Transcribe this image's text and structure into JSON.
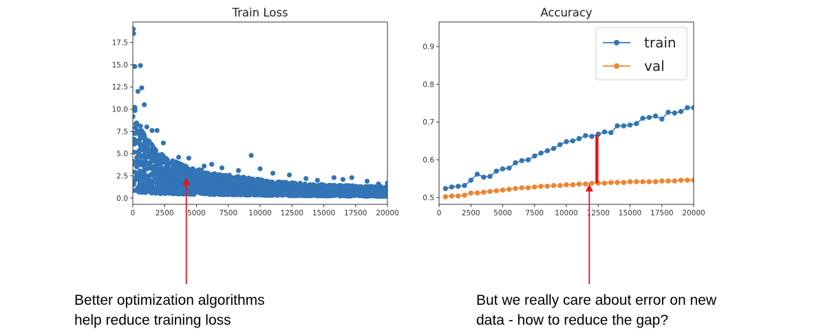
{
  "chart_data": [
    {
      "type": "scatter",
      "title": "Train Loss",
      "xlabel": "",
      "ylabel": "",
      "xlim": [
        0,
        20000
      ],
      "ylim": [
        -0.7,
        19.8
      ],
      "xticks": [
        "0",
        "2500",
        "5000",
        "7500",
        "10000",
        "12500",
        "15000",
        "17500",
        "20000"
      ],
      "yticks": [
        "0.0",
        "2.5",
        "5.0",
        "7.5",
        "10.0",
        "12.5",
        "15.0",
        "17.5"
      ],
      "color": "#3274b5",
      "envelope": {
        "x": [
          0,
          200,
          500,
          1000,
          1500,
          2000,
          2500,
          3000,
          4000,
          5000,
          6000,
          7000,
          8000,
          9000,
          10000,
          11000,
          12000,
          13000,
          14000,
          15000,
          16000,
          17000,
          18000,
          19000,
          20000
        ],
        "upper": [
          11.0,
          10.0,
          8.8,
          7.0,
          6.0,
          5.2,
          4.7,
          4.3,
          3.7,
          3.3,
          2.9,
          2.7,
          2.5,
          2.3,
          2.1,
          1.9,
          1.8,
          1.7,
          1.6,
          1.5,
          1.45,
          1.4,
          1.35,
          1.3,
          1.25
        ],
        "lower": [
          0.8,
          0.7,
          0.65,
          0.6,
          0.55,
          0.5,
          0.5,
          0.48,
          0.45,
          0.42,
          0.4,
          0.38,
          0.36,
          0.34,
          0.32,
          0.3,
          0.28,
          0.26,
          0.25,
          0.24,
          0.23,
          0.22,
          0.21,
          0.2,
          0.2
        ]
      },
      "outliers": [
        [
          40,
          19.0
        ],
        [
          60,
          18.5
        ],
        [
          150,
          14.8
        ],
        [
          600,
          14.9
        ],
        [
          700,
          12.4
        ],
        [
          400,
          12.0
        ],
        [
          900,
          10.5
        ],
        [
          1100,
          8.0
        ],
        [
          1500,
          7.6
        ],
        [
          1900,
          7.6
        ],
        [
          2400,
          6.2
        ],
        [
          3600,
          4.6
        ],
        [
          4400,
          4.5
        ],
        [
          5600,
          3.6
        ],
        [
          6200,
          3.8
        ],
        [
          7000,
          3.4
        ],
        [
          8300,
          3.1
        ],
        [
          9300,
          4.8
        ],
        [
          10000,
          3.3
        ],
        [
          11000,
          2.8
        ],
        [
          12300,
          2.6
        ],
        [
          13600,
          2.2
        ],
        [
          14500,
          2.0
        ],
        [
          15800,
          2.3
        ],
        [
          16500,
          2.1
        ],
        [
          17200,
          2.3
        ],
        [
          18400,
          1.9
        ],
        [
          19300,
          1.6
        ],
        [
          20000,
          1.7
        ]
      ]
    },
    {
      "type": "line",
      "title": "Accuracy",
      "xlabel": "",
      "ylabel": "",
      "xlim": [
        0,
        20000
      ],
      "ylim": [
        0.482,
        0.965
      ],
      "xticks": [
        "0",
        "2500",
        "5000",
        "7500",
        "10000",
        "12500",
        "15000",
        "17500",
        "20000"
      ],
      "yticks": [
        "0.5",
        "0.6",
        "0.7",
        "0.8",
        "0.9"
      ],
      "legend": "top-right",
      "x": [
        500,
        1000,
        1500,
        2000,
        2500,
        3000,
        3500,
        4000,
        4500,
        5000,
        5500,
        6000,
        6500,
        7000,
        7500,
        8000,
        8500,
        9000,
        9500,
        10000,
        10500,
        11000,
        11500,
        12000,
        12500,
        13000,
        13500,
        14000,
        14500,
        15000,
        15500,
        16000,
        16500,
        17000,
        17500,
        18000,
        18500,
        19000,
        19500,
        20000
      ],
      "series": [
        {
          "name": "train",
          "color": "#3274b5",
          "values": [
            0.524,
            0.528,
            0.53,
            0.532,
            0.546,
            0.562,
            0.554,
            0.556,
            0.57,
            0.576,
            0.578,
            0.592,
            0.598,
            0.6,
            0.61,
            0.618,
            0.624,
            0.63,
            0.64,
            0.648,
            0.65,
            0.656,
            0.664,
            0.662,
            0.668,
            0.674,
            0.672,
            0.69,
            0.69,
            0.692,
            0.696,
            0.71,
            0.712,
            0.716,
            0.708,
            0.726,
            0.724,
            0.728,
            0.738,
            0.738
          ]
        },
        {
          "name": "val",
          "color": "#ee8530",
          "values": [
            0.502,
            0.504,
            0.504,
            0.506,
            0.512,
            0.512,
            0.514,
            0.516,
            0.518,
            0.52,
            0.522,
            0.524,
            0.526,
            0.526,
            0.528,
            0.53,
            0.53,
            0.532,
            0.532,
            0.534,
            0.534,
            0.536,
            0.536,
            0.538,
            0.538,
            0.538,
            0.54,
            0.54,
            0.54,
            0.542,
            0.542,
            0.542,
            0.542,
            0.542,
            0.544,
            0.544,
            0.544,
            0.546,
            0.546,
            0.546
          ]
        }
      ]
    }
  ],
  "annotations": {
    "left": {
      "line1": "Better optimization algorithms",
      "line2": "help reduce training loss",
      "arrow_target_x": 4200,
      "arrow_target_y": 2.3
    },
    "right": {
      "line1": "But we really care about error on new",
      "line2": "data - how to reduce the gap?",
      "arrow_target_x": 11800,
      "arrow_target_y": 0.536,
      "gap_x": 12400,
      "gap_top": 0.666,
      "gap_bottom": 0.538
    },
    "arrow_color": "#e8161a"
  }
}
